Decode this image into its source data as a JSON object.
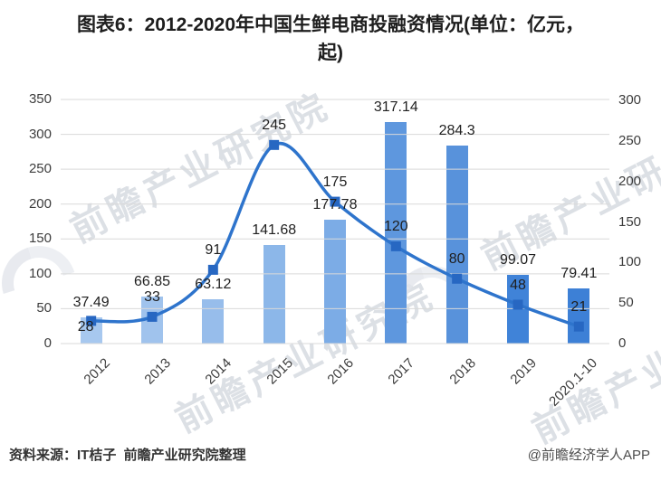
{
  "title_lines": [
    "图表6：2012-2020年中国生鲜电商投融资情况(单位：亿元，",
    "起)"
  ],
  "footer": {
    "source": "资料来源：IT桔子  前瞻产业研究院整理",
    "credit": "@前瞻经济学人APP"
  },
  "watermark": {
    "text": "前瞻产业研究院",
    "color": "#aeb6c3"
  },
  "chart_data": {
    "type": "bar",
    "subtype": "bar+line combo, dual axis",
    "title": "图表6：2012-2020年中国生鲜电商投融资情况(单位：亿元，起)",
    "categories": [
      "2012",
      "2013",
      "2014",
      "2015",
      "2016",
      "2017",
      "2018",
      "2019",
      "2020.1-10"
    ],
    "series": [
      {
        "id": "amount",
        "type": "bar",
        "axis": "left",
        "unit": "亿元",
        "values": [
          37.49,
          66.85,
          63.12,
          141.68,
          177.78,
          317.14,
          284.3,
          99.07,
          79.41
        ]
      },
      {
        "id": "deals",
        "type": "line",
        "axis": "right",
        "unit": "起",
        "values": [
          28,
          33,
          91,
          245,
          175,
          120,
          80,
          48,
          21
        ]
      }
    ],
    "left_axis": {
      "min": 0,
      "max": 350,
      "step": 50,
      "ticks": [
        0,
        50,
        100,
        150,
        200,
        250,
        300,
        350
      ]
    },
    "right_axis": {
      "min": 0,
      "max": 300,
      "step": 50,
      "ticks": [
        0,
        50,
        100,
        150,
        200,
        250,
        300
      ]
    },
    "grid": true,
    "legend": false,
    "grid_color": "#d9d9d9",
    "bar_colors": [
      "#a7c8ef",
      "#a0c3ed",
      "#97bdeb",
      "#8cb7e9",
      "#7cace6",
      "#5e97de",
      "#5892db",
      "#4083d8",
      "#3d80d6"
    ],
    "line_color": "#2e74cc",
    "marker_color": "#2767c2"
  }
}
